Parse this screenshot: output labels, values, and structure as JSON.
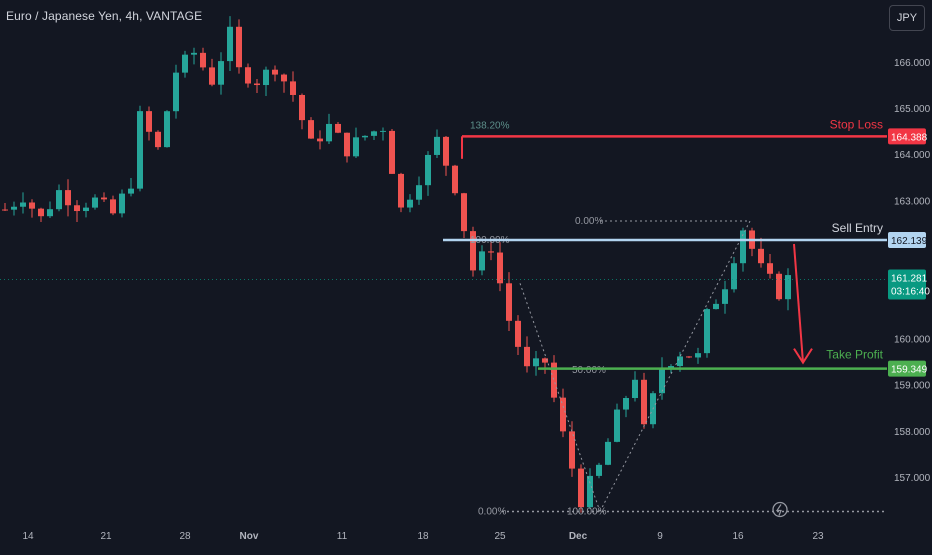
{
  "header": {
    "symbol_title": "Euro / Japanese Yen, 4h, VANTAGE",
    "currency_button": "JPY"
  },
  "colors": {
    "background": "#131722",
    "up": "#26a69a",
    "down": "#ef5350",
    "stop_loss": "#f23645",
    "sell_entry": "#b2d4f0",
    "take_profit": "#4caf50",
    "current_price": "#089981",
    "arrow": "#f23645"
  },
  "chart_data": {
    "type": "candlestick",
    "title": "Euro / Japanese Yen, 4h, VANTAGE",
    "y_axis": {
      "ticks": [
        "166.000",
        "165.000",
        "164.000",
        "163.000",
        "160.000",
        "159.000",
        "158.000",
        "157.000"
      ],
      "range": [
        156.0,
        167.3
      ],
      "position": "right"
    },
    "x_axis": {
      "tick_labels": [
        "14",
        "21",
        "28",
        "Nov",
        "11",
        "18",
        "25",
        "Dec",
        "9",
        "16",
        "23"
      ]
    },
    "price_path": [
      [
        0,
        162.8
      ],
      [
        2,
        163.1
      ],
      [
        4,
        162.6
      ],
      [
        6,
        163.2
      ],
      [
        8,
        162.9
      ],
      [
        10,
        163.0
      ],
      [
        12,
        162.7
      ],
      [
        14,
        163.4
      ],
      [
        15,
        164.8
      ],
      [
        17,
        164.1
      ],
      [
        19,
        165.8
      ],
      [
        21,
        166.2
      ],
      [
        23,
        165.6
      ],
      [
        25,
        166.6
      ],
      [
        26,
        165.8
      ],
      [
        28,
        165.6
      ],
      [
        30,
        165.9
      ],
      [
        32,
        165.3
      ],
      [
        34,
        164.2
      ],
      [
        36,
        164.6
      ],
      [
        38,
        164.1
      ],
      [
        40,
        164.4
      ],
      [
        42,
        164.6
      ],
      [
        44,
        162.8
      ],
      [
        46,
        163.5
      ],
      [
        48,
        164.3
      ],
      [
        50,
        163.3
      ],
      [
        52,
        161.5
      ],
      [
        54,
        162.0
      ],
      [
        56,
        160.4
      ],
      [
        58,
        159.3
      ],
      [
        60,
        159.5
      ],
      [
        62,
        157.9
      ],
      [
        64,
        156.5
      ],
      [
        66,
        157.2
      ],
      [
        68,
        158.3
      ],
      [
        70,
        159.2
      ],
      [
        71,
        158.0
      ],
      [
        73,
        159.4
      ],
      [
        75,
        159.7
      ],
      [
        77,
        159.6
      ],
      [
        78,
        160.5
      ],
      [
        80,
        161.2
      ],
      [
        82,
        162.4
      ],
      [
        84,
        161.5
      ],
      [
        86,
        161.0
      ],
      [
        87,
        161.3
      ]
    ],
    "levels": [
      {
        "name": "Stop Loss",
        "price": 164.388,
        "label": "164.388"
      },
      {
        "name": "Sell Entry",
        "price": 162.139,
        "label": "162.139"
      },
      {
        "name": "Take Profit",
        "price": 159.349,
        "label": "159.349"
      }
    ],
    "current_price": {
      "value": 161.281,
      "label": "161.281",
      "countdown": "03:16:40"
    },
    "fib_labels": {
      "top_extension": "138.20%",
      "zero_top": "0.00%",
      "hundred_top": "100.00%",
      "fifty": "50.00%",
      "zero_bottom": "0.00%",
      "hundred_bottom": "100.00%"
    },
    "grid": false,
    "legend": "none"
  }
}
